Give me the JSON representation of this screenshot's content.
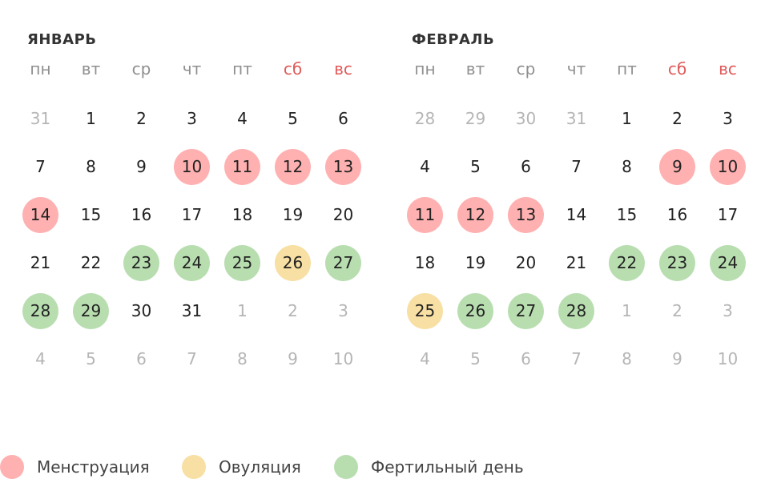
{
  "colors": {
    "menstruation": "#ffb0b0",
    "ovulation": "#f8dfa3",
    "fertile": "#b8deb0",
    "weekend": "#e05a5a",
    "muted": "#b5b5b5"
  },
  "weekdays": [
    {
      "label": "пн",
      "weekend": false
    },
    {
      "label": "вт",
      "weekend": false
    },
    {
      "label": "ср",
      "weekend": false
    },
    {
      "label": "чт",
      "weekend": false
    },
    {
      "label": "пт",
      "weekend": false
    },
    {
      "label": "сб",
      "weekend": true
    },
    {
      "label": "вс",
      "weekend": true
    }
  ],
  "months": [
    {
      "title": "ЯНВАРЬ",
      "weeks": [
        [
          {
            "d": "31",
            "out": true
          },
          {
            "d": "1"
          },
          {
            "d": "2"
          },
          {
            "d": "3"
          },
          {
            "d": "4"
          },
          {
            "d": "5"
          },
          {
            "d": "6"
          }
        ],
        [
          {
            "d": "7"
          },
          {
            "d": "8"
          },
          {
            "d": "9"
          },
          {
            "d": "10",
            "mark": "menstruation"
          },
          {
            "d": "11",
            "mark": "menstruation"
          },
          {
            "d": "12",
            "mark": "menstruation"
          },
          {
            "d": "13",
            "mark": "menstruation"
          }
        ],
        [
          {
            "d": "14",
            "mark": "menstruation"
          },
          {
            "d": "15"
          },
          {
            "d": "16"
          },
          {
            "d": "17"
          },
          {
            "d": "18"
          },
          {
            "d": "19"
          },
          {
            "d": "20"
          }
        ],
        [
          {
            "d": "21"
          },
          {
            "d": "22"
          },
          {
            "d": "23",
            "mark": "fertile"
          },
          {
            "d": "24",
            "mark": "fertile"
          },
          {
            "d": "25",
            "mark": "fertile"
          },
          {
            "d": "26",
            "mark": "ovulation"
          },
          {
            "d": "27",
            "mark": "fertile"
          }
        ],
        [
          {
            "d": "28",
            "mark": "fertile"
          },
          {
            "d": "29",
            "mark": "fertile"
          },
          {
            "d": "30"
          },
          {
            "d": "31"
          },
          {
            "d": "1",
            "out": true
          },
          {
            "d": "2",
            "out": true
          },
          {
            "d": "3",
            "out": true
          }
        ],
        [
          {
            "d": "4",
            "out": true
          },
          {
            "d": "5",
            "out": true
          },
          {
            "d": "6",
            "out": true
          },
          {
            "d": "7",
            "out": true
          },
          {
            "d": "8",
            "out": true
          },
          {
            "d": "9",
            "out": true
          },
          {
            "d": "10",
            "out": true
          }
        ]
      ]
    },
    {
      "title": "ФЕВРАЛЬ",
      "weeks": [
        [
          {
            "d": "28",
            "out": true
          },
          {
            "d": "29",
            "out": true
          },
          {
            "d": "30",
            "out": true
          },
          {
            "d": "31",
            "out": true
          },
          {
            "d": "1"
          },
          {
            "d": "2"
          },
          {
            "d": "3"
          }
        ],
        [
          {
            "d": "4"
          },
          {
            "d": "5"
          },
          {
            "d": "6"
          },
          {
            "d": "7"
          },
          {
            "d": "8"
          },
          {
            "d": "9",
            "mark": "menstruation"
          },
          {
            "d": "10",
            "mark": "menstruation"
          }
        ],
        [
          {
            "d": "11",
            "mark": "menstruation"
          },
          {
            "d": "12",
            "mark": "menstruation"
          },
          {
            "d": "13",
            "mark": "menstruation"
          },
          {
            "d": "14"
          },
          {
            "d": "15"
          },
          {
            "d": "16"
          },
          {
            "d": "17"
          }
        ],
        [
          {
            "d": "18"
          },
          {
            "d": "19"
          },
          {
            "d": "20"
          },
          {
            "d": "21"
          },
          {
            "d": "22",
            "mark": "fertile"
          },
          {
            "d": "23",
            "mark": "fertile"
          },
          {
            "d": "24",
            "mark": "fertile"
          }
        ],
        [
          {
            "d": "25",
            "mark": "ovulation"
          },
          {
            "d": "26",
            "mark": "fertile"
          },
          {
            "d": "27",
            "mark": "fertile"
          },
          {
            "d": "28",
            "mark": "fertile"
          },
          {
            "d": "1",
            "out": true
          },
          {
            "d": "2",
            "out": true
          },
          {
            "d": "3",
            "out": true
          }
        ],
        [
          {
            "d": "4",
            "out": true
          },
          {
            "d": "5",
            "out": true
          },
          {
            "d": "6",
            "out": true
          },
          {
            "d": "7",
            "out": true
          },
          {
            "d": "8",
            "out": true
          },
          {
            "d": "9",
            "out": true
          },
          {
            "d": "10",
            "out": true
          }
        ]
      ]
    }
  ],
  "legend": [
    {
      "key": "menstruation",
      "label": "Менструация"
    },
    {
      "key": "ovulation",
      "label": "Овуляция"
    },
    {
      "key": "fertile",
      "label": "Фертильный день"
    }
  ]
}
